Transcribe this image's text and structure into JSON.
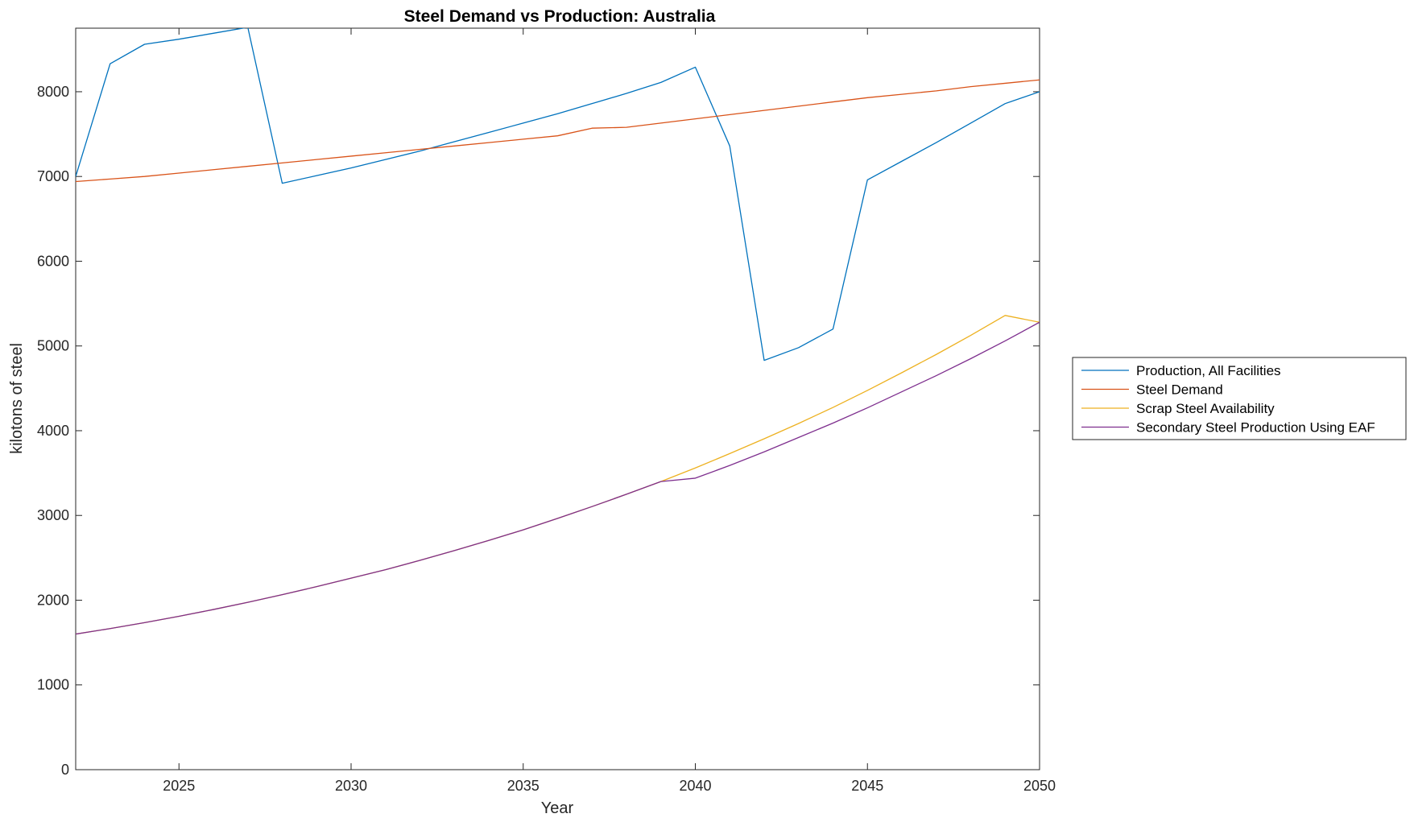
{
  "chart_data": {
    "type": "line",
    "title": "Steel Demand vs Production: Australia",
    "xlabel": "Year",
    "ylabel": "kilotons of steel",
    "xlim": [
      2022,
      2050
    ],
    "ylim": [
      0,
      8750
    ],
    "xticks": [
      2025,
      2030,
      2035,
      2040,
      2045,
      2050
    ],
    "yticks": [
      0,
      1000,
      2000,
      3000,
      4000,
      5000,
      6000,
      7000,
      8000
    ],
    "grid": false,
    "legend_position": "outside-right",
    "x": [
      2022,
      2023,
      2024,
      2025,
      2026,
      2027,
      2028,
      2029,
      2030,
      2031,
      2032,
      2033,
      2034,
      2035,
      2036,
      2037,
      2038,
      2039,
      2040,
      2041,
      2042,
      2043,
      2044,
      2045,
      2046,
      2047,
      2048,
      2049,
      2050
    ],
    "series": [
      {
        "name": "Production, All Facilities",
        "color": "#0072BD",
        "values": [
          7000,
          8330,
          8560,
          8620,
          8690,
          8760,
          6920,
          7010,
          7100,
          7200,
          7300,
          7410,
          7520,
          7630,
          7740,
          7860,
          7980,
          8110,
          8290,
          7360,
          4830,
          4980,
          5200,
          6960,
          7180,
          7400,
          7630,
          7860,
          8000
        ]
      },
      {
        "name": "Steel Demand",
        "color": "#D95319",
        "values": [
          6940,
          6970,
          7000,
          7040,
          7080,
          7120,
          7160,
          7200,
          7240,
          7280,
          7320,
          7360,
          7400,
          7440,
          7480,
          7570,
          7580,
          7630,
          7680,
          7730,
          7780,
          7830,
          7880,
          7930,
          7970,
          8010,
          8060,
          8100,
          8140
        ]
      },
      {
        "name": "Scrap Steel Availability",
        "color": "#EDB120",
        "values": [
          1600,
          1665,
          1735,
          1810,
          1890,
          1975,
          2065,
          2160,
          2260,
          2360,
          2470,
          2585,
          2705,
          2830,
          2965,
          3105,
          3250,
          3400,
          3560,
          3730,
          3905,
          4085,
          4275,
          4475,
          4685,
          4900,
          5125,
          5360,
          5280
        ]
      },
      {
        "name": "Secondary Steel Production Using EAF",
        "color": "#7E2F8E",
        "values": [
          1600,
          1665,
          1735,
          1810,
          1890,
          1975,
          2065,
          2160,
          2260,
          2360,
          2470,
          2585,
          2705,
          2830,
          2965,
          3105,
          3250,
          3400,
          3440,
          3590,
          3750,
          3920,
          4090,
          4270,
          4460,
          4650,
          4850,
          5060,
          5280
        ]
      }
    ]
  }
}
